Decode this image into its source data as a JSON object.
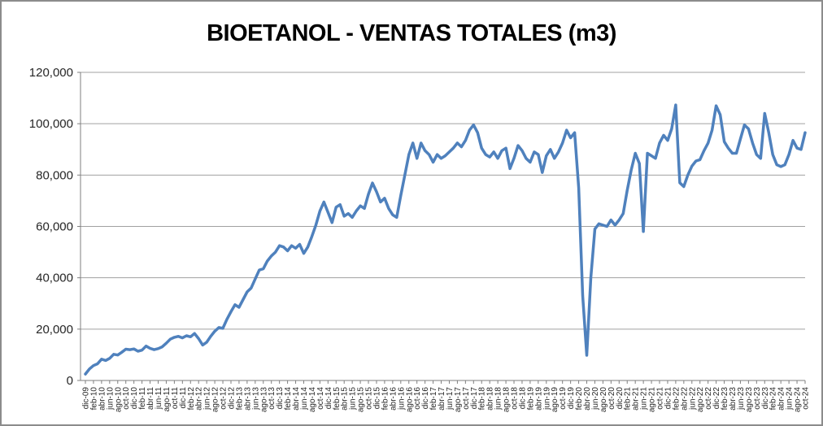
{
  "chart_data": {
    "type": "line",
    "title": "BIOETANOL - VENTAS TOTALES (m3)",
    "xlabel": "",
    "ylabel": "",
    "ylim": [
      0,
      120000
    ],
    "grid": true,
    "legend": false,
    "x_range": [
      "dic-09",
      "oct-24"
    ],
    "x_frequency": "monthly",
    "y_ticks": [
      0,
      20000,
      40000,
      60000,
      80000,
      100000,
      120000
    ],
    "y_tick_labels": [
      "0",
      "20,000",
      "40,000",
      "60,000",
      "80,000",
      "100,000",
      "120,000"
    ],
    "x_tick_labels": [
      "dic-09",
      "feb-10",
      "abr-10",
      "jun-10",
      "ago-10",
      "oct-10",
      "dic-10",
      "feb-11",
      "abr-11",
      "jun-11",
      "ago-11",
      "oct-11",
      "dic-11",
      "feb-12",
      "abr-12",
      "jun-12",
      "ago-12",
      "oct-12",
      "dic-12",
      "feb-13",
      "abr-13",
      "jun-13",
      "ago-13",
      "oct-13",
      "dic-13",
      "feb-14",
      "abr-14",
      "jun-14",
      "ago-14",
      "oct-14",
      "dic-14",
      "feb-15",
      "abr-15",
      "jun-15",
      "ago-15",
      "oct-15",
      "dic-15",
      "feb-16",
      "abr-16",
      "jun-16",
      "ago-16",
      "oct-16",
      "dic-16",
      "feb-17",
      "abr-17",
      "jun-17",
      "ago-17",
      "oct-17",
      "dic-17",
      "feb-18",
      "abr-18",
      "jun-18",
      "ago-18",
      "oct-18",
      "dic-18",
      "feb-19",
      "abr-19",
      "jun-19",
      "ago-19",
      "oct-19",
      "dic-19",
      "feb-20",
      "abr-20",
      "jun-20",
      "ago-20",
      "oct-20",
      "dic-20",
      "feb-21",
      "abr-21",
      "jun-21",
      "ago-21",
      "oct-21",
      "dic-21",
      "feb-22",
      "abr-22",
      "jun-22",
      "ago-22",
      "oct-22",
      "dic-22",
      "feb-23",
      "abr-23",
      "jun-23",
      "ago-23",
      "oct-23",
      "dic-23",
      "feb-24",
      "abr-24",
      "jun-24",
      "ago-24",
      "oct-24"
    ],
    "values": [
      2500,
      4500,
      5800,
      6500,
      8300,
      7800,
      8600,
      10200,
      9900,
      11000,
      12200,
      12000,
      12300,
      11400,
      11800,
      13400,
      12500,
      12000,
      12400,
      13100,
      14500,
      16100,
      16800,
      17200,
      16600,
      17400,
      17000,
      18300,
      16300,
      13800,
      14900,
      17200,
      19200,
      20600,
      20300,
      23800,
      26800,
      29500,
      28500,
      31500,
      34500,
      36000,
      39500,
      43000,
      43500,
      46500,
      48500,
      50000,
      52500,
      52000,
      50500,
      52500,
      51500,
      53000,
      49500,
      52000,
      56000,
      60500,
      66000,
      69500,
      65500,
      61500,
      67500,
      68500,
      64000,
      65000,
      63500,
      66000,
      68000,
      67000,
      72500,
      76900,
      73500,
      69500,
      71000,
      67000,
      64500,
      63500,
      72000,
      80000,
      88000,
      92500,
      86500,
      92500,
      89500,
      88000,
      85000,
      88000,
      86500,
      87500,
      89000,
      90500,
      92500,
      91000,
      93500,
      97500,
      99500,
      96500,
      90500,
      88000,
      87000,
      89000,
      86500,
      89500,
      90500,
      82500,
      86500,
      91500,
      89500,
      86500,
      85000,
      89000,
      88000,
      81000,
      87500,
      90000,
      86500,
      89000,
      92500,
      97500,
      94500,
      96500,
      75000,
      33000,
      9800,
      40000,
      59000,
      61000,
      60500,
      60000,
      62500,
      60500,
      62500,
      65000,
      74000,
      82000,
      88500,
      84500,
      58000,
      88500,
      87500,
      86500,
      92500,
      95500,
      93500,
      98000,
      107300,
      77000,
      75500,
      80000,
      83500,
      85500,
      86000,
      89500,
      92500,
      97500,
      107000,
      103500,
      93000,
      90500,
      88500,
      88500,
      94000,
      99500,
      98000,
      92500,
      88000,
      86500,
      104000,
      96500,
      88000,
      84000,
      83300,
      84000,
      88000,
      93500,
      90500,
      90000,
      96500
    ],
    "colors": {
      "line": "#4F81BD",
      "gridline": "#A0A0A0",
      "axis": "#7F7F7F",
      "label": "#262626",
      "title": "#000000",
      "border": "#8C8C8C"
    }
  }
}
